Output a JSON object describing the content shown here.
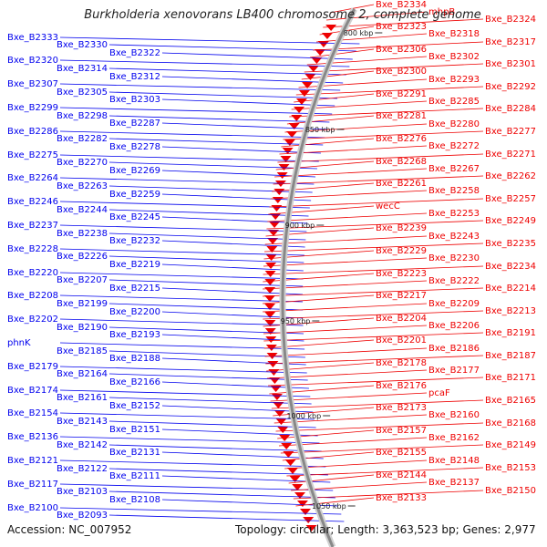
{
  "title": "Burkholderia xenovorans LB400 chromosome 2, complete genome",
  "footer": {
    "accession": "Accession: NC_007952",
    "summary": "Topology: circular; Length: 3,363,523 bp; Genes: 2,977"
  },
  "colors": {
    "forward_strand": "#0000ee",
    "reverse_strand": "#ee0000",
    "backbone": "#888888",
    "marker": "#228b22"
  },
  "scale_labels": [
    "800 kbp",
    "850 kbp",
    "900 kbp",
    "950 kbp",
    "1000 kbp",
    "1050 kbp"
  ],
  "left_labels": [
    "Bxe_B2333",
    "Bxe_B2330",
    "Bxe_B2322",
    "Bxe_B2320",
    "Bxe_B2314",
    "Bxe_B2312",
    "Bxe_B2307",
    "Bxe_B2305",
    "Bxe_B2303",
    "Bxe_B2299",
    "Bxe_B2298",
    "Bxe_B2287",
    "Bxe_B2286",
    "Bxe_B2282",
    "Bxe_B2278",
    "Bxe_B2275",
    "Bxe_B2270",
    "Bxe_B2269",
    "Bxe_B2264",
    "Bxe_B2263",
    "Bxe_B2259",
    "Bxe_B2246",
    "Bxe_B2244",
    "Bxe_B2245",
    "Bxe_B2237",
    "Bxe_B2238",
    "Bxe_B2232",
    "Bxe_B2228",
    "Bxe_B2226",
    "Bxe_B2219",
    "Bxe_B2220",
    "Bxe_B2207",
    "Bxe_B2215",
    "Bxe_B2208",
    "Bxe_B2199",
    "Bxe_B2200",
    "Bxe_B2202",
    "Bxe_B2190",
    "Bxe_B2193",
    "phnK",
    "Bxe_B2185",
    "Bxe_B2188",
    "Bxe_B2179",
    "Bxe_B2164",
    "Bxe_B2166",
    "Bxe_B2174",
    "Bxe_B2161",
    "Bxe_B2152",
    "Bxe_B2154",
    "Bxe_B2143",
    "Bxe_B2151",
    "Bxe_B2136",
    "Bxe_B2142",
    "Bxe_B2131",
    "Bxe_B2121",
    "Bxe_B2122",
    "Bxe_B2111",
    "Bxe_B2117",
    "Bxe_B2103",
    "Bxe_B2108",
    "Bxe_B2100",
    "Bxe_B2093"
  ],
  "right_labels": [
    "Bxe_B2334",
    "mhpB",
    "Bxe_B2324",
    "Bxe_B2323",
    "Bxe_B2318",
    "Bxe_B2317",
    "Bxe_B2306",
    "Bxe_B2302",
    "Bxe_B2301",
    "Bxe_B2300",
    "Bxe_B2293",
    "Bxe_B2292",
    "Bxe_B2291",
    "Bxe_B2285",
    "Bxe_B2284",
    "Bxe_B2281",
    "Bxe_B2280",
    "Bxe_B2277",
    "Bxe_B2276",
    "Bxe_B2272",
    "Bxe_B2271",
    "Bxe_B2268",
    "Bxe_B2267",
    "Bxe_B2262",
    "Bxe_B2261",
    "Bxe_B2258",
    "Bxe_B2257",
    "wecC",
    "Bxe_B2253",
    "Bxe_B2249",
    "Bxe_B2239",
    "Bxe_B2243",
    "Bxe_B2235",
    "Bxe_B2229",
    "Bxe_B2230",
    "Bxe_B2234",
    "Bxe_B2223",
    "Bxe_B2222",
    "Bxe_B2214",
    "Bxe_B2217",
    "Bxe_B2209",
    "Bxe_B2213",
    "Bxe_B2204",
    "Bxe_B2206",
    "Bxe_B2191",
    "Bxe_B2201",
    "Bxe_B2186",
    "Bxe_B2187",
    "Bxe_B2178",
    "Bxe_B2177",
    "Bxe_B2171",
    "Bxe_B2176",
    "pcaF",
    "Bxe_B2165",
    "Bxe_B2173",
    "Bxe_B2160",
    "Bxe_B2168",
    "Bxe_B2157",
    "Bxe_B2162",
    "Bxe_B2149",
    "Bxe_B2155",
    "Bxe_B2148",
    "Bxe_B2153",
    "Bxe_B2144",
    "Bxe_B2137",
    "Bxe_B2150",
    "Bxe_B2133"
  ]
}
